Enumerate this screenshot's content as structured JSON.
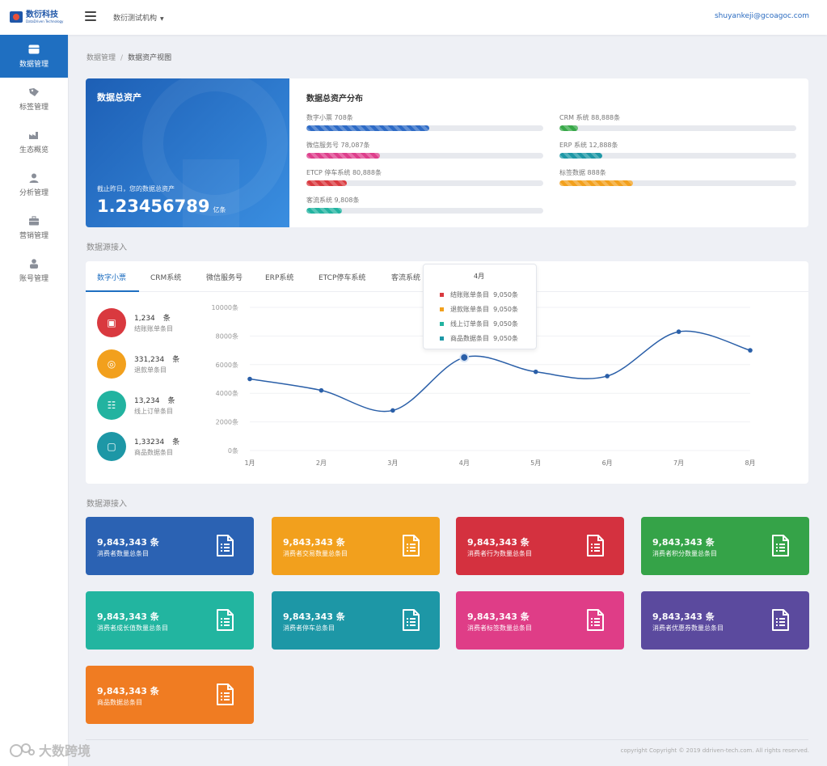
{
  "header": {
    "logo_cn": "数衍科技",
    "logo_en": "DataDriven Technology",
    "org_select": "数衍测试机构",
    "user_email": "shuyankeji@gcoagoc.com"
  },
  "sidebar": {
    "items": [
      {
        "label": "数据管理",
        "icon": "database-icon",
        "active": true
      },
      {
        "label": "标签管理",
        "icon": "tag-icon",
        "active": false
      },
      {
        "label": "生态概览",
        "icon": "factory-icon",
        "active": false
      },
      {
        "label": "分析管理",
        "icon": "user-icon",
        "active": false
      },
      {
        "label": "营销管理",
        "icon": "briefcase-icon",
        "active": false
      },
      {
        "label": "账号管理",
        "icon": "account-icon",
        "active": false
      }
    ]
  },
  "breadcrumb": {
    "parent": "数据管理",
    "separator": "/",
    "current": "数据资产视图"
  },
  "asset": {
    "title": "数据总资产",
    "caption": "截止昨日，您的数据总资产",
    "value": "1.23456789",
    "unit": "亿条"
  },
  "distribution": {
    "title": "数据总资产分布",
    "items": [
      {
        "label": "数字小票  708条",
        "fill": 0.52,
        "color": "#2e6bc6"
      },
      {
        "label": "微信服务号  78,087条",
        "fill": 0.31,
        "color": "#de3f8c"
      },
      {
        "label": "ETCP 停车系统  80,888条",
        "fill": 0.17,
        "color": "#d9393f"
      },
      {
        "label": "客流系统  9,808条",
        "fill": 0.15,
        "color": "#22b3a0"
      },
      {
        "label": "CRM 系统  88,888条",
        "fill": 0.08,
        "color": "#37a848"
      },
      {
        "label": "ERP 系统  12,888条",
        "fill": 0.18,
        "color": "#1d97a6"
      },
      {
        "label": "标签数据  888条",
        "fill": 0.31,
        "color": "#f2a01d"
      }
    ]
  },
  "sections": {
    "source_access": "数据源接入",
    "source_access_2": "数据源接入"
  },
  "tabs": [
    "数字小票",
    "CRM系统",
    "微信服务号",
    "ERP系统",
    "ETCP停车系统",
    "客流系统"
  ],
  "stats": [
    {
      "value": "1,234",
      "unit": "条",
      "label": "结账账单条目",
      "color": "#d9393f",
      "icon": "receipt-icon"
    },
    {
      "value": "331,234",
      "unit": "条",
      "label": "退款单条目",
      "color": "#f2a01d",
      "icon": "refund-icon"
    },
    {
      "value": "13,234",
      "unit": "条",
      "label": "线上订单条目",
      "color": "#22b3a0",
      "icon": "order-icon"
    },
    {
      "value": "1,33234",
      "unit": "条",
      "label": "商品数据条目",
      "color": "#1d97a6",
      "icon": "goods-icon"
    }
  ],
  "chart_data": {
    "type": "line",
    "categories": [
      "1月",
      "2月",
      "3月",
      "4月",
      "5月",
      "6月",
      "7月",
      "8月"
    ],
    "values": [
      5000,
      4200,
      2800,
      6500,
      5500,
      5200,
      8300,
      7000
    ],
    "y_ticks": [
      "0条",
      "2000条",
      "4000条",
      "6000条",
      "8000条",
      "10000条"
    ],
    "ylim": [
      0,
      10000
    ],
    "color": "#2a5fa8",
    "highlight_index": 3,
    "tooltip": {
      "title": "4月",
      "rows": [
        {
          "label": "结账账单条目",
          "value": "9,050条",
          "color": "#d9393f"
        },
        {
          "label": "退款账单条目",
          "value": "9,050条",
          "color": "#f2a01d"
        },
        {
          "label": "线上订单条目",
          "value": "9,050条",
          "color": "#22b3a0"
        },
        {
          "label": "商品数据条目",
          "value": "9,050条",
          "color": "#1d97a6"
        }
      ]
    }
  },
  "tiles": [
    {
      "value": "9,843,343 条",
      "label": "消费者数量总条目",
      "color": "#2b62b3"
    },
    {
      "value": "9,843,343 条",
      "label": "消费者交易数量总条目",
      "color": "#f2a01d"
    },
    {
      "value": "9,843,343 条",
      "label": "消费者行为数量总条目",
      "color": "#d4313f"
    },
    {
      "value": "9,843,343 条",
      "label": "消费者积分数量总条目",
      "color": "#35a348"
    },
    {
      "value": "9,843,343 条",
      "label": "消费者成长值数量总条目",
      "color": "#22b5a0"
    },
    {
      "value": "9,843,343 条",
      "label": "消费者停车总条目",
      "color": "#1d97a6"
    },
    {
      "value": "9,843,343 条",
      "label": "消费者标签数量总条目",
      "color": "#df3d87"
    },
    {
      "value": "9,843,343 条",
      "label": "消费者优惠券数量总条目",
      "color": "#5b4a9e"
    },
    {
      "value": "9,843,343 条",
      "label": "商品数据总条目",
      "color": "#f07c22"
    }
  ],
  "footer": "copyright  Copyright © 2019 ddriven-tech.com. All rights reserved.",
  "watermark": "大数跨境"
}
